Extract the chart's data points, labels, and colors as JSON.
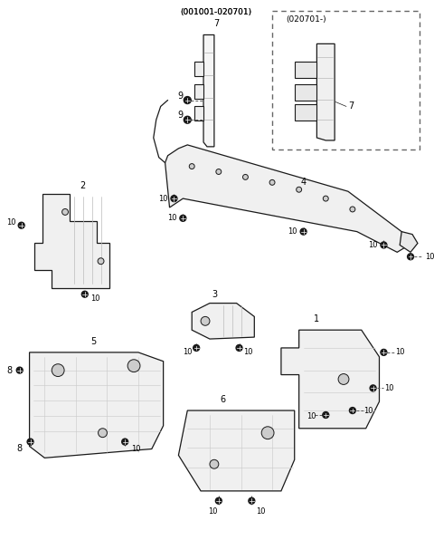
{
  "bg_color": "#ffffff",
  "line_color": "#1a1a1a",
  "fig_width": 4.8,
  "fig_height": 6.07,
  "dpi": 100
}
